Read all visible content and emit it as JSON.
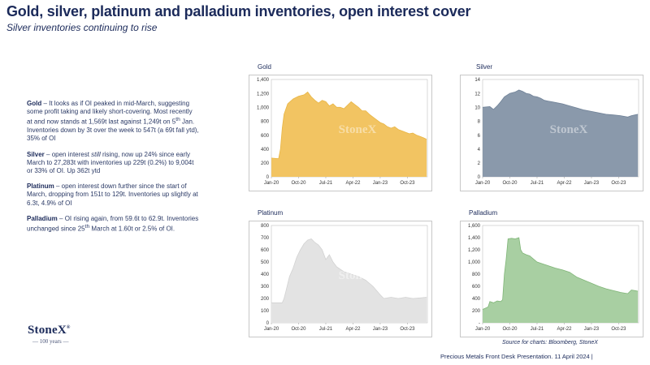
{
  "header": {
    "title": "Gold, silver, platinum and palladium inventories, open interest cover",
    "subtitle": "Silver inventories continuing to rise"
  },
  "commentary": {
    "gold": {
      "label": "Gold",
      "text1": " – It looks as if OI peaked in mid-March, suggesting some profit taking and likely short-covering.  Most recently at and now stands at 1,569t last against 1,249t on 5",
      "sup": "th",
      "text2": " Jan. Inventories down by 3t over the week to 547t (a 69t fall ytd), 35% of OI"
    },
    "silver": {
      "label": "Silver",
      "text1": " – open interest ",
      "italic": "still",
      "text2": " rising, now up 24% since early March to 27,283t with inventories up 229t (0.2%) to 9,004t or 33% of OI.  Up 362t ytd"
    },
    "platinum": {
      "label": "Platinum",
      "text1": " – open interest down further since the start of March, dropping from 151t to 129t. Inventories up slightly at 6.3t, 4.9% of OI"
    },
    "palladium": {
      "label": "Palladium",
      "text1": " – OI rising again, from 59.6t to 62.9t. Inventories unchanged since 25",
      "sup": "th",
      "text2": " March at 1.60t or 2.5% of OI."
    }
  },
  "logo": {
    "name": "StoneX",
    "tm": "®",
    "tagline": "— 100 years —"
  },
  "source": "Source for charts: Bloomberg, StoneX",
  "footer": "Precious Metals Front Desk Presentation. 11 April 2024 |",
  "colors": {
    "navy": "#1b2a5a",
    "gold": "#f2c462",
    "silver": "#8a99ab",
    "platinum": "#e3e3e3",
    "palladium": "#a8cfa2"
  },
  "chart_data": [
    {
      "type": "area",
      "title": "Gold",
      "watermark": "StoneX",
      "fill": "#f2c462",
      "stroke": "#e8b545",
      "ylim": [
        0,
        1400
      ],
      "yticks": [
        0,
        200,
        400,
        600,
        800,
        1000,
        1200,
        1400
      ],
      "ytick_labels": [
        "0",
        "200",
        "400",
        "600",
        "800",
        "1,000",
        "1,200",
        "1,400"
      ],
      "xlim": [
        2020.0,
        2024.3
      ],
      "xticks": [
        2020.0,
        2020.75,
        2021.5,
        2022.25,
        2023.0,
        2023.75
      ],
      "xtick_labels": [
        "Jan-20",
        "Oct-20",
        "Jul-21",
        "Apr-22",
        "Jan-23",
        "Oct-23"
      ],
      "x": [
        2020.0,
        2020.2,
        2020.25,
        2020.3,
        2020.35,
        2020.45,
        2020.6,
        2020.75,
        2020.9,
        2021.0,
        2021.1,
        2021.2,
        2021.3,
        2021.4,
        2021.5,
        2021.6,
        2021.7,
        2021.8,
        2021.9,
        2022.0,
        2022.1,
        2022.2,
        2022.3,
        2022.4,
        2022.5,
        2022.6,
        2022.7,
        2022.8,
        2022.9,
        2023.0,
        2023.1,
        2023.2,
        2023.3,
        2023.4,
        2023.5,
        2023.6,
        2023.7,
        2023.8,
        2023.9,
        2024.0,
        2024.1,
        2024.2,
        2024.28
      ],
      "y": [
        270,
        260,
        400,
        700,
        900,
        1050,
        1120,
        1160,
        1180,
        1220,
        1150,
        1100,
        1060,
        1100,
        1080,
        1020,
        1050,
        1000,
        1000,
        980,
        1030,
        1080,
        1040,
        1000,
        950,
        950,
        900,
        860,
        820,
        780,
        760,
        720,
        700,
        720,
        680,
        660,
        640,
        620,
        630,
        600,
        580,
        560,
        540
      ]
    },
    {
      "type": "area",
      "title": "Silver",
      "watermark": "StoneX",
      "fill": "#8a99ab",
      "stroke": "#6f8197",
      "ylim": [
        0,
        14
      ],
      "yticks": [
        0,
        2,
        4,
        6,
        8,
        10,
        12,
        14
      ],
      "ytick_labels": [
        "0",
        "2",
        "4",
        "6",
        "8",
        "10",
        "12",
        "14"
      ],
      "xlim": [
        2020.0,
        2024.3
      ],
      "xticks": [
        2020.0,
        2020.75,
        2021.5,
        2022.25,
        2023.0,
        2023.75
      ],
      "xtick_labels": [
        "Jan-20",
        "Oct-20",
        "Jul-21",
        "Apr-22",
        "Jan-23",
        "Oct-23"
      ],
      "x": [
        2020.0,
        2020.2,
        2020.3,
        2020.4,
        2020.5,
        2020.6,
        2020.75,
        2020.9,
        2021.0,
        2021.1,
        2021.2,
        2021.3,
        2021.4,
        2021.5,
        2021.6,
        2021.7,
        2021.8,
        2021.9,
        2022.0,
        2022.2,
        2022.4,
        2022.6,
        2022.8,
        2023.0,
        2023.2,
        2023.4,
        2023.6,
        2023.8,
        2024.0,
        2024.1,
        2024.2,
        2024.28
      ],
      "y": [
        10.0,
        10.1,
        9.7,
        10.2,
        10.8,
        11.5,
        12.0,
        12.2,
        12.5,
        12.3,
        12.0,
        11.9,
        11.6,
        11.5,
        11.3,
        11.0,
        10.9,
        10.8,
        10.7,
        10.5,
        10.2,
        9.9,
        9.6,
        9.4,
        9.2,
        9.0,
        8.9,
        8.8,
        8.6,
        8.8,
        8.9,
        9.0
      ]
    },
    {
      "type": "area",
      "title": "Platinum",
      "watermark": "StoneX",
      "fill": "#e3e3e3",
      "stroke": "#d2d2d2",
      "ylim": [
        0,
        800
      ],
      "yticks": [
        0,
        100,
        200,
        300,
        400,
        500,
        600,
        700,
        800
      ],
      "ytick_labels": [
        "0",
        "100",
        "200",
        "300",
        "400",
        "500",
        "600",
        "700",
        "800"
      ],
      "xlim": [
        2020.0,
        2024.3
      ],
      "xticks": [
        2020.0,
        2020.75,
        2021.5,
        2022.25,
        2023.0,
        2023.75
      ],
      "xtick_labels": [
        "Jan-20",
        "Oct-20",
        "Jul-21",
        "Apr-22",
        "Jan-23",
        "Oct-23"
      ],
      "x": [
        2020.0,
        2020.3,
        2020.35,
        2020.4,
        2020.5,
        2020.6,
        2020.7,
        2020.8,
        2020.9,
        2021.0,
        2021.1,
        2021.2,
        2021.3,
        2021.4,
        2021.5,
        2021.6,
        2021.7,
        2021.8,
        2021.9,
        2022.0,
        2022.2,
        2022.4,
        2022.6,
        2022.8,
        2023.0,
        2023.1,
        2023.3,
        2023.5,
        2023.7,
        2023.9,
        2024.1,
        2024.28
      ],
      "y": [
        165,
        165,
        200,
        260,
        380,
        450,
        540,
        600,
        650,
        680,
        690,
        660,
        640,
        600,
        520,
        560,
        500,
        460,
        440,
        420,
        400,
        380,
        350,
        300,
        230,
        200,
        210,
        200,
        210,
        200,
        205,
        210
      ]
    },
    {
      "type": "area",
      "title": "Palladium",
      "watermark": "",
      "fill": "#a8cfa2",
      "stroke": "#7fb577",
      "ylim": [
        0,
        1600
      ],
      "yticks": [
        0,
        200,
        400,
        600,
        800,
        1000,
        1200,
        1400,
        1600
      ],
      "ytick_labels": [
        "-",
        "200",
        "400",
        "600",
        "800",
        "1,000",
        "1,200",
        "1,400",
        "1,600"
      ],
      "xlim": [
        2020.0,
        2024.3
      ],
      "xticks": [
        2020.0,
        2020.75,
        2021.5,
        2022.25,
        2023.0,
        2023.75
      ],
      "xtick_labels": [
        "Jan-20",
        "Oct-20",
        "Jul-21",
        "Apr-22",
        "Jan-23",
        "Oct-23"
      ],
      "x": [
        2020.0,
        2020.15,
        2020.2,
        2020.3,
        2020.4,
        2020.5,
        2020.55,
        2020.6,
        2020.65,
        2020.7,
        2020.8,
        2020.9,
        2021.0,
        2021.05,
        2021.1,
        2021.2,
        2021.3,
        2021.4,
        2021.5,
        2021.6,
        2021.8,
        2022.0,
        2022.2,
        2022.4,
        2022.6,
        2022.8,
        2023.0,
        2023.2,
        2023.4,
        2023.6,
        2023.8,
        2024.0,
        2024.1,
        2024.2,
        2024.28
      ],
      "y": [
        220,
        260,
        350,
        330,
        360,
        350,
        380,
        800,
        1050,
        1380,
        1390,
        1380,
        1400,
        1200,
        1150,
        1120,
        1100,
        1050,
        1000,
        980,
        940,
        900,
        870,
        830,
        750,
        700,
        650,
        600,
        560,
        530,
        500,
        480,
        540,
        530,
        520
      ]
    }
  ]
}
